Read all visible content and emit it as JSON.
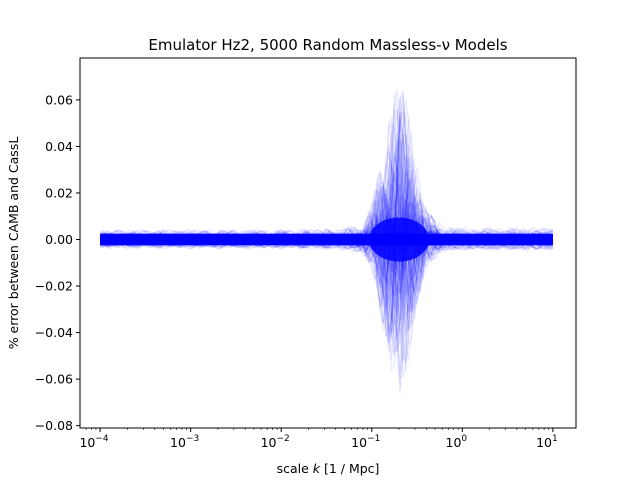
{
  "chart_data": {
    "type": "line",
    "title": "Emulator Hz2, 5000 Random Massless-ν Models",
    "xlabel_prefix": "scale ",
    "xlabel_var": "k",
    "xlabel_suffix": " [1 / Mpc]",
    "ylabel": "% error between CAMB and CassL",
    "xscale": "log",
    "xlim": [
      6e-05,
      18
    ],
    "ylim": [
      -0.081,
      0.078
    ],
    "x_ticks": [
      {
        "value": 0.0001,
        "base": "10",
        "exp": "−4"
      },
      {
        "value": 0.001,
        "base": "10",
        "exp": "−3"
      },
      {
        "value": 0.01,
        "base": "10",
        "exp": "−2"
      },
      {
        "value": 0.1,
        "base": "10",
        "exp": "−1"
      },
      {
        "value": 1,
        "base": "10",
        "exp": "0"
      },
      {
        "value": 10,
        "base": "10",
        "exp": "1"
      }
    ],
    "y_ticks": [
      {
        "value": 0.06,
        "label": "0.06"
      },
      {
        "value": 0.04,
        "label": "0.04"
      },
      {
        "value": 0.02,
        "label": "0.02"
      },
      {
        "value": 0.0,
        "label": "0.00"
      },
      {
        "value": -0.02,
        "label": "−0.02"
      },
      {
        "value": -0.04,
        "label": "−0.04"
      },
      {
        "value": -0.06,
        "label": "−0.06"
      },
      {
        "value": -0.08,
        "label": "−0.08"
      }
    ],
    "series_count": 5000,
    "color": "#0000ff",
    "grid": false,
    "legend": "none",
    "x_range": [
      0.0001,
      10
    ],
    "band_envelope": {
      "x": [
        0.0001,
        0.001,
        0.01,
        0.05,
        0.08,
        0.1,
        0.15,
        0.2,
        0.25,
        0.3,
        0.4,
        0.6,
        1,
        10
      ],
      "upper": [
        0.0025,
        0.0025,
        0.0025,
        0.003,
        0.005,
        0.012,
        0.045,
        0.068,
        0.055,
        0.035,
        0.012,
        0.004,
        0.003,
        0.003
      ],
      "lower": [
        -0.0025,
        -0.0025,
        -0.0025,
        -0.003,
        -0.006,
        -0.015,
        -0.055,
        -0.075,
        -0.06,
        -0.035,
        -0.012,
        -0.004,
        -0.003,
        -0.003
      ]
    }
  }
}
